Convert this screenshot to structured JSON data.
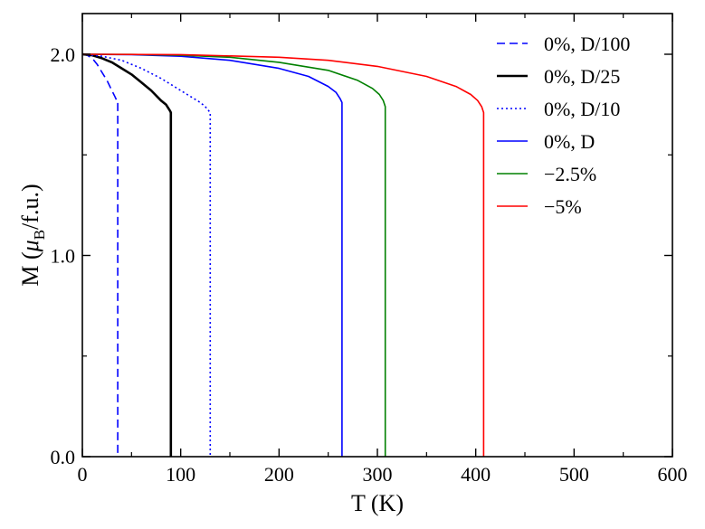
{
  "chart_data": {
    "type": "line",
    "xlabel": "T (K)",
    "ylabel": {
      "prefix": "M (",
      "mu": "μ",
      "sub": "B",
      "suffix": "/f.u.)"
    },
    "xlim": [
      0,
      600
    ],
    "ylim": [
      0.0,
      2.0
    ],
    "xticks": [
      0,
      100,
      200,
      300,
      400,
      500,
      600
    ],
    "xtick_labels": [
      "0",
      "100",
      "200",
      "300",
      "400",
      "500",
      "600"
    ],
    "yticks": [
      0.0,
      1.0,
      2.0
    ],
    "ytick_labels": [
      "0.0",
      "1.0",
      "2.0"
    ],
    "grid": false,
    "legend_position": "top-right",
    "series": [
      {
        "name": "0%, D/100",
        "color": "#0000ff",
        "style": "dashed",
        "width": 1.6,
        "tc": 36,
        "m_end": 1.77,
        "x": [
          0,
          5,
          10,
          15,
          20,
          25,
          30,
          33,
          35,
          36,
          36,
          36
        ],
        "y": [
          2.0,
          1.995,
          1.98,
          1.95,
          1.91,
          1.87,
          1.82,
          1.79,
          1.77,
          1.77,
          0.8,
          0.0
        ]
      },
      {
        "name": "0%, D/25",
        "color": "#000000",
        "style": "solid",
        "width": 2.6,
        "tc": 90,
        "m_end": 1.71,
        "x": [
          0,
          10,
          20,
          30,
          40,
          50,
          60,
          70,
          80,
          85,
          89,
          90,
          90,
          90
        ],
        "y": [
          2.0,
          1.995,
          1.98,
          1.96,
          1.93,
          1.9,
          1.86,
          1.82,
          1.77,
          1.75,
          1.72,
          1.71,
          0.9,
          0.0
        ]
      },
      {
        "name": "0%, D/10",
        "color": "#0000ff",
        "style": "dotted",
        "width": 1.6,
        "tc": 130,
        "m_end": 1.71,
        "x": [
          0,
          20,
          40,
          60,
          80,
          100,
          110,
          120,
          125,
          130,
          130,
          130
        ],
        "y": [
          2.0,
          1.99,
          1.97,
          1.93,
          1.88,
          1.82,
          1.79,
          1.76,
          1.74,
          1.71,
          0.9,
          0.0
        ]
      },
      {
        "name": "0%, D",
        "color": "#0000ff",
        "style": "solid",
        "width": 1.6,
        "tc": 264,
        "m_end": 1.76,
        "x": [
          0,
          50,
          100,
          150,
          200,
          230,
          250,
          258,
          262,
          264,
          264,
          264
        ],
        "y": [
          2.0,
          1.998,
          1.99,
          1.97,
          1.93,
          1.89,
          1.84,
          1.81,
          1.78,
          1.76,
          0.9,
          0.0
        ]
      },
      {
        "name": "−2.5%",
        "color": "#008000",
        "style": "solid",
        "width": 1.6,
        "tc": 308,
        "m_end": 1.74,
        "x": [
          0,
          50,
          100,
          150,
          200,
          250,
          280,
          295,
          302,
          306,
          308,
          308,
          308
        ],
        "y": [
          2.0,
          1.999,
          1.995,
          1.985,
          1.96,
          1.92,
          1.87,
          1.83,
          1.8,
          1.77,
          1.74,
          0.9,
          0.0
        ]
      },
      {
        "name": "−5%",
        "color": "#ff0000",
        "style": "solid",
        "width": 1.6,
        "tc": 408,
        "m_end": 1.71,
        "x": [
          0,
          100,
          200,
          250,
          300,
          350,
          380,
          395,
          402,
          406,
          408,
          408,
          408
        ],
        "y": [
          2.0,
          1.998,
          1.985,
          1.97,
          1.94,
          1.89,
          1.84,
          1.8,
          1.77,
          1.74,
          1.71,
          0.9,
          0.0
        ]
      }
    ]
  }
}
